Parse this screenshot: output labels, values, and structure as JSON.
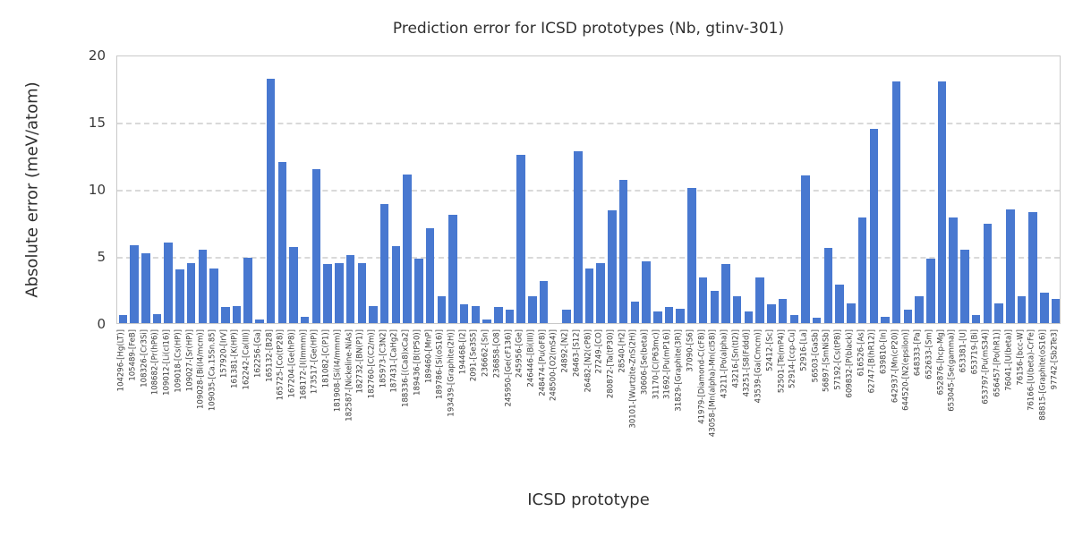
{
  "chart_data": {
    "type": "bar",
    "title": "Prediction error for ICSD prototypes (Nb, gtinv-301)",
    "xlabel": "ICSD prototype",
    "ylabel": "Absolute error (meV/atom)",
    "ylim": [
      0,
      20
    ],
    "yticks": [
      0,
      5,
      10,
      15,
      20
    ],
    "grid": true,
    "legend": "none",
    "bar_color": "#4878d0",
    "categories": [
      "104296-[Hg(LT)]",
      "105489-[FeB]",
      "108326-[Cr3Si]",
      "108682-[Pr(hP6)]",
      "109012-[Li(cI16)]",
      "109018-[Cs(HP)]",
      "109027-[Sr(HP)]",
      "109028-[Bi(I4/mcm)]",
      "109035-[Ca.15Sn.85]",
      "157920-[IrV]",
      "161381-[K(HP)]",
      "162242-[Ca(III)]",
      "162256-[Ga]",
      "165132-[B28]",
      "165725-[Co(tP28)]",
      "167204-[Ge(hP8)]",
      "168172-[I(Immm)]",
      "173517-[Ge(HP)]",
      "181082-[C(P1)]",
      "181908-[Si(I4/mmm)]",
      "182587-[Nickeline-NiAs]",
      "182732-[BN(P1)]",
      "182760-[C(C2/m)]",
      "185973-[C3N2]",
      "187431-[CaHg2]",
      "188336-[(Ca8)xCa2]",
      "189436-[B(tP50)]",
      "189460-[MnP]",
      "189786-[Si(oS16)]",
      "193439-[Graphite(2H)]",
      "194468-[I2]",
      "2091-[Se3S5]",
      "236662-[Sn]",
      "236858-[O8]",
      "245950-[Ge(cF136)]",
      "245956-[Ge]",
      "246446-[Bi(III)]",
      "248474-[Pu(oF8)]",
      "248500-[O2(mS4)]",
      "24892-[N2]",
      "26463-[S12]",
      "26482-[N2(cP8)]",
      "27249-[CO]",
      "280872-[Ta(tP30)]",
      "28540-[H2]",
      "30101-[Wurtzite-ZnS(2H)]",
      "30606-[Se(beta)]",
      "31170-[C(P63mc)]",
      "31692-[Pu(mP16)]",
      "31829-[Graphite(3R)]",
      "37090-[S6]",
      "41979-[Diamond-C(cF8)]",
      "43058-[Mn(alpha)-Mn(cI58)]",
      "43211-[Po(alpha)]",
      "43216-[Sn(tI2)]",
      "43251-[S8(Fddd)]",
      "43539-[Ga(Cmcm)]",
      "52412-[Sc]",
      "52501-[Te(mP4)]",
      "52914-[ccp-Cu]",
      "52916-[La]",
      "56503-[GaSb]",
      "56897-[SmNiSb]",
      "57192-[Cs(tP8)]",
      "609832-[P(black)]",
      "616526-[As]",
      "62747-[B(hR12)]",
      "639810-[In]",
      "642937-[Mn(cP20)]",
      "644520-[N2(epsilon)]",
      "648333-[Pa]",
      "652633-[Sm]",
      "652876-[hcp-Mg]",
      "653045-[Se(gamma)]",
      "653381-[U]",
      "653719-[Bi]",
      "653797-[Pu(mS34)]",
      "656457-[Po(hR1)]",
      "76041-[U(beta)]",
      "76156-[bcc-W]",
      "76166-[U(beta)-CrFe]",
      "88815-[Graphite(oS16)]",
      "97742-[Sb2Te3]"
    ],
    "values": [
      0.6,
      5.8,
      5.2,
      0.7,
      6.0,
      4.0,
      4.5,
      5.5,
      4.1,
      1.2,
      1.3,
      4.9,
      0.3,
      18.2,
      12.0,
      5.7,
      0.5,
      11.5,
      4.4,
      4.45,
      5.05,
      4.45,
      1.3,
      8.9,
      5.75,
      11.05,
      4.8,
      7.1,
      2.0,
      8.1,
      1.4,
      1.3,
      0.3,
      1.2,
      1.0,
      12.55,
      2.0,
      3.15,
      0.0,
      1.0,
      12.8,
      4.1,
      4.5,
      8.4,
      10.7,
      1.6,
      4.6,
      0.9,
      1.2,
      1.1,
      10.1,
      3.4,
      2.4,
      4.4,
      2.0,
      0.9,
      3.4,
      1.4,
      1.8,
      0.6,
      11.0,
      0.4,
      5.6,
      2.9,
      1.5,
      7.9,
      14.5,
      0.5,
      18.0,
      1.0,
      2.0,
      4.8,
      18.0,
      7.9,
      5.5,
      0.6,
      7.4,
      1.5,
      8.5,
      2.0,
      8.3,
      2.3,
      1.8
    ]
  }
}
